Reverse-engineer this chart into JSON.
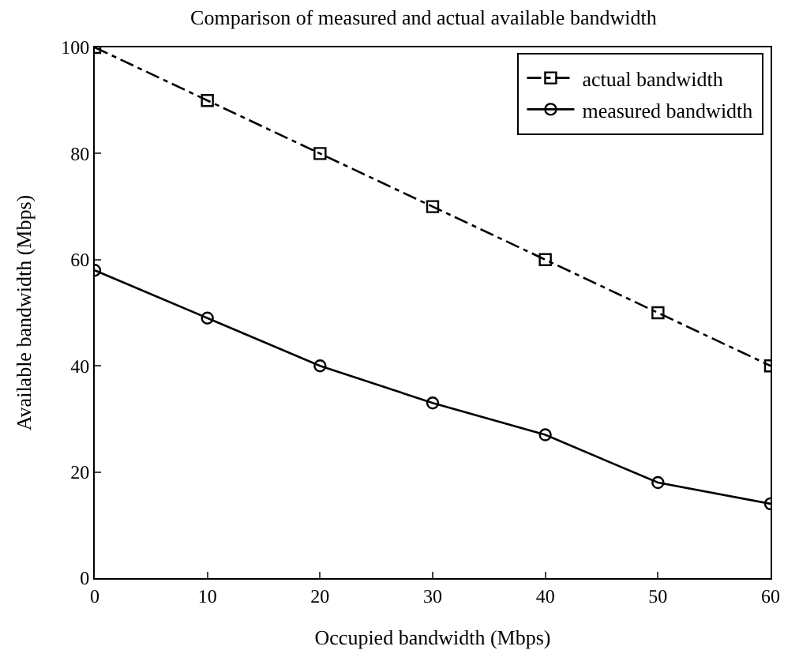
{
  "chart_data": {
    "type": "line",
    "title": "Comparison of measured and actual available bandwidth",
    "xlabel": "Occupied bandwidth (Mbps)",
    "ylabel": "Available bandwidth (Mbps)",
    "x": [
      0,
      10,
      20,
      30,
      40,
      50,
      60
    ],
    "series": [
      {
        "name": "actual bandwidth",
        "color": "#000000",
        "values": [
          100,
          90,
          80,
          70,
          60,
          50,
          40
        ],
        "marker": "square",
        "line_style": "dashdot"
      },
      {
        "name": "measured bandwidth",
        "color": "#000000",
        "values": [
          58,
          49,
          40,
          33,
          27,
          18,
          14
        ],
        "marker": "circle",
        "line_style": "solid"
      }
    ],
    "xlim": [
      0,
      60
    ],
    "ylim": [
      0,
      100
    ],
    "xticks": [
      0,
      10,
      20,
      30,
      40,
      50,
      60
    ],
    "yticks": [
      0,
      20,
      40,
      60,
      80,
      100
    ],
    "grid": false,
    "legend": "top right"
  }
}
